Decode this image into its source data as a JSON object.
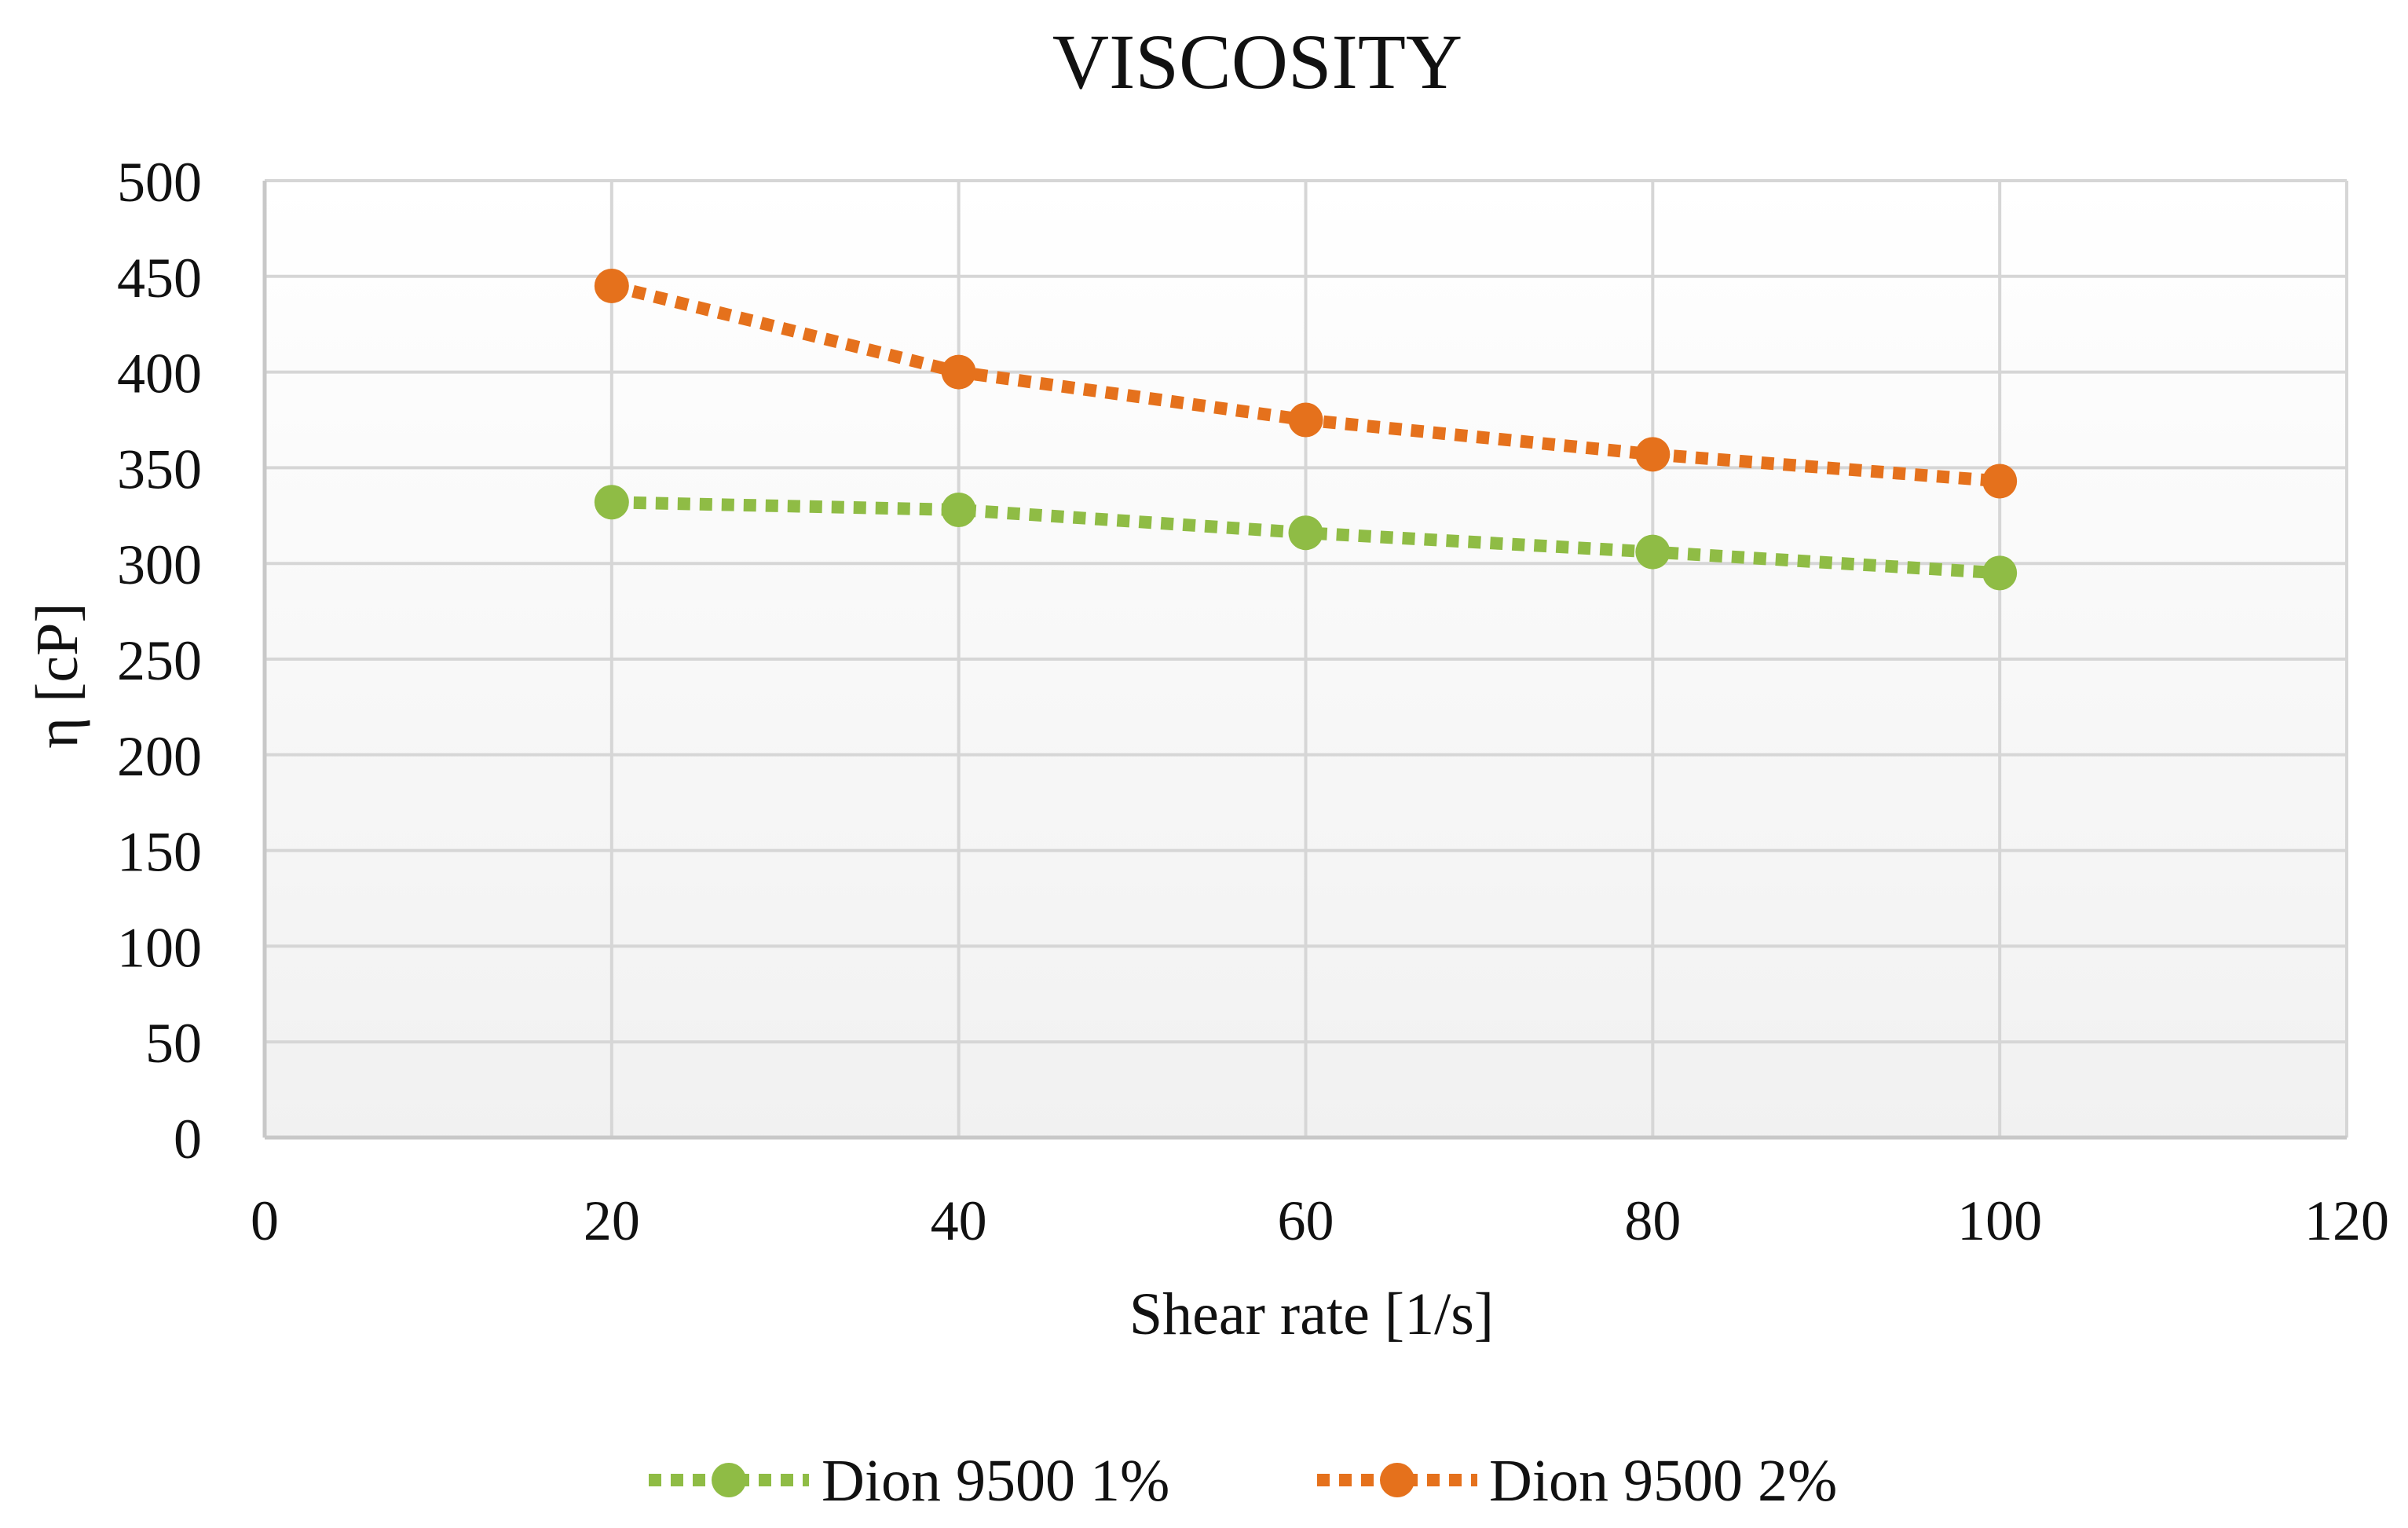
{
  "chart_data": {
    "type": "line",
    "title": "VISCOSITY",
    "xlabel": "Shear rate [1/s]",
    "ylabel": "η [cP]",
    "xlim": [
      0,
      120
    ],
    "ylim": [
      0,
      500
    ],
    "x_ticks": [
      0,
      20,
      40,
      60,
      80,
      100,
      120
    ],
    "y_ticks": [
      0,
      50,
      100,
      150,
      200,
      250,
      300,
      350,
      400,
      450,
      500
    ],
    "grid": true,
    "legend_position": "bottom",
    "line_style": "dotted",
    "marker": "circle",
    "series": [
      {
        "name": "Dion 9500 1%",
        "color": "#8fbc45",
        "x": [
          20,
          40,
          60,
          80,
          100
        ],
        "y": [
          332,
          328,
          316,
          306,
          295
        ]
      },
      {
        "name": "Dion 9500 2%",
        "color": "#e5711c",
        "x": [
          20,
          40,
          60,
          80,
          100
        ],
        "y": [
          445,
          400,
          375,
          357,
          343
        ]
      }
    ],
    "colors": {
      "plot_background_top": "#ffffff",
      "plot_background_bottom": "#f1f1f1",
      "gridline": "#d6d6d6",
      "axis_line": "#c8c8c8",
      "text": "#111111"
    }
  }
}
